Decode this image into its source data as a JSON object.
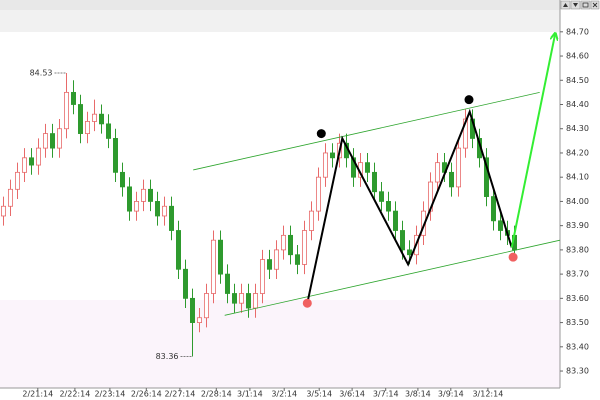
{
  "chart_data": {
    "type": "candlestick",
    "up_color": "#e86a6a",
    "down_color": "#2e9a2e",
    "xlim": [
      -0.5,
      79.5
    ],
    "ylim": [
      83.23,
      84.79
    ],
    "xticks": [
      {
        "value": 4.9,
        "label": "2/21:14"
      },
      {
        "value": 10.2,
        "label": "2/22:14"
      },
      {
        "value": 15.2,
        "label": "2/23:14"
      },
      {
        "value": 20.4,
        "label": "2/26:14"
      },
      {
        "value": 25.2,
        "label": "2/27:14"
      },
      {
        "value": 30.4,
        "label": "2/28:14"
      },
      {
        "value": 35.2,
        "label": "3/1:14"
      },
      {
        "value": 40.1,
        "label": "3/2:14"
      },
      {
        "value": 45.1,
        "label": "3/5:14"
      },
      {
        "value": 49.8,
        "label": "3/6:14"
      },
      {
        "value": 54.6,
        "label": "3/7:14"
      },
      {
        "value": 59.2,
        "label": "3/8:14"
      },
      {
        "value": 63.9,
        "label": "3/9:14"
      },
      {
        "value": 69.2,
        "label": "3/12:14"
      }
    ],
    "yticks": [
      {
        "value": 84.7,
        "label": "84.70"
      },
      {
        "value": 84.6,
        "label": "84.60"
      },
      {
        "value": 84.5,
        "label": "84.50"
      },
      {
        "value": 84.4,
        "label": "84.40"
      },
      {
        "value": 84.3,
        "label": "84.30"
      },
      {
        "value": 84.2,
        "label": "84.20"
      },
      {
        "value": 84.1,
        "label": "84.10"
      },
      {
        "value": 84.0,
        "label": "84.00"
      },
      {
        "value": 83.9,
        "label": "83.90"
      },
      {
        "value": 83.8,
        "label": "83.80"
      },
      {
        "value": 83.7,
        "label": "83.70"
      },
      {
        "value": 83.6,
        "label": "83.60"
      },
      {
        "value": 83.5,
        "label": "83.50"
      },
      {
        "value": 83.4,
        "label": "83.40"
      },
      {
        "value": 83.3,
        "label": "83.30"
      }
    ],
    "open": [
      83.94,
      83.98,
      84.05,
      84.12,
      84.18,
      84.15,
      84.22,
      84.28,
      84.22,
      84.3,
      84.45,
      84.4,
      84.28,
      84.33,
      84.36,
      84.32,
      84.26,
      84.12,
      84.06,
      83.96,
      84.0,
      84.05,
      84.0,
      83.94,
      83.98,
      83.88,
      83.72,
      83.6,
      83.5,
      83.52,
      83.62,
      83.84,
      83.7,
      83.62,
      83.58,
      83.62,
      83.56,
      83.62,
      83.76,
      83.72,
      83.8,
      83.86,
      83.78,
      83.74,
      83.88,
      83.96,
      84.1,
      84.2,
      84.18,
      84.24,
      84.18,
      84.1,
      84.16,
      84.12,
      84.04,
      84.0,
      83.96,
      83.88,
      83.8,
      83.78,
      83.86,
      83.96,
      84.08,
      84.16,
      84.12,
      84.06,
      84.22,
      84.34,
      84.26,
      84.18,
      84.02,
      83.92,
      83.88,
      83.86
    ],
    "high": [
      84.02,
      84.09,
      84.16,
      84.22,
      84.22,
      84.26,
      84.32,
      84.32,
      84.34,
      84.53,
      84.5,
      84.44,
      84.37,
      84.42,
      84.4,
      84.36,
      84.3,
      84.16,
      84.1,
      84.04,
      84.09,
      84.09,
      84.04,
      84.02,
      84.02,
      83.92,
      83.76,
      83.64,
      83.56,
      83.66,
      83.88,
      83.88,
      83.74,
      83.66,
      83.66,
      83.66,
      83.66,
      83.8,
      83.8,
      83.84,
      83.9,
      83.9,
      83.82,
      83.92,
      84.0,
      84.14,
      84.24,
      84.24,
      84.28,
      84.28,
      84.22,
      84.2,
      84.2,
      84.16,
      84.08,
      84.04,
      84.0,
      83.92,
      83.84,
      83.9,
      84.0,
      84.12,
      84.2,
      84.2,
      84.16,
      84.26,
      84.38,
      84.38,
      84.3,
      84.22,
      84.06,
      83.96,
      83.92,
      83.9
    ],
    "low": [
      83.9,
      83.94,
      84.01,
      84.08,
      84.11,
      84.11,
      84.18,
      84.18,
      84.18,
      84.26,
      84.36,
      84.24,
      84.24,
      84.29,
      84.28,
      84.22,
      84.08,
      84.02,
      83.92,
      83.92,
      83.96,
      83.96,
      83.9,
      83.9,
      83.84,
      83.68,
      83.56,
      83.36,
      83.46,
      83.48,
      83.58,
      83.66,
      83.58,
      83.54,
      83.54,
      83.52,
      83.52,
      83.58,
      83.68,
      83.68,
      83.76,
      83.74,
      83.7,
      83.7,
      83.84,
      83.92,
      84.06,
      84.14,
      84.14,
      84.14,
      84.06,
      84.06,
      84.08,
      84.0,
      83.96,
      83.92,
      83.84,
      83.76,
      83.74,
      83.74,
      83.82,
      83.92,
      84.04,
      84.08,
      84.02,
      84.02,
      84.18,
      84.22,
      84.14,
      83.98,
      83.88,
      83.84,
      83.82,
      83.78
    ],
    "close": [
      83.98,
      84.05,
      84.12,
      84.18,
      84.15,
      84.22,
      84.28,
      84.22,
      84.3,
      84.45,
      84.4,
      84.28,
      84.33,
      84.36,
      84.32,
      84.26,
      84.12,
      84.06,
      83.96,
      84.0,
      84.05,
      84.0,
      83.94,
      83.98,
      83.88,
      83.72,
      83.6,
      83.5,
      83.52,
      83.62,
      83.84,
      83.7,
      83.62,
      83.58,
      83.62,
      83.56,
      83.62,
      83.76,
      83.72,
      83.8,
      83.86,
      83.78,
      83.74,
      83.88,
      83.96,
      84.1,
      84.2,
      84.18,
      84.24,
      84.18,
      84.1,
      84.16,
      84.12,
      84.04,
      84.0,
      83.96,
      83.88,
      83.8,
      83.78,
      83.86,
      83.96,
      84.08,
      84.16,
      84.12,
      84.06,
      84.22,
      84.34,
      84.26,
      84.18,
      84.02,
      83.92,
      83.88,
      83.86,
      83.8
    ],
    "annotations": [
      {
        "text": "84.53",
        "x": 9,
        "y": 84.53
      },
      {
        "text": "83.36",
        "x": 27,
        "y": 83.36
      }
    ],
    "lines": [
      {
        "color": "#2ea52e",
        "width": 0.8,
        "x": [
          27.1,
          76.6
        ],
        "y": [
          84.13,
          84.45
        ]
      },
      {
        "color": "#2ea52e",
        "width": 0.8,
        "x": [
          31.6,
          79.5
        ],
        "y": [
          83.53,
          83.84
        ]
      },
      {
        "color": "#000000",
        "width": 2,
        "x": [
          43.4,
          48.4,
          57.8,
          66.6,
          72.6
        ],
        "y": [
          83.58,
          84.26,
          83.74,
          84.37,
          83.81
        ]
      },
      {
        "color": "#33ee33",
        "width": 2,
        "arrow": true,
        "x": [
          72.6,
          78.8
        ],
        "y": [
          83.81,
          84.69
        ]
      }
    ],
    "dots": [
      {
        "color": "#000000",
        "x": 45.4,
        "y": 84.28
      },
      {
        "color": "#000000",
        "x": 66.5,
        "y": 84.42
      },
      {
        "color": "#f06060",
        "x": 43.4,
        "y": 83.58
      },
      {
        "color": "#f06060",
        "x": 72.8,
        "y": 83.77
      }
    ]
  }
}
